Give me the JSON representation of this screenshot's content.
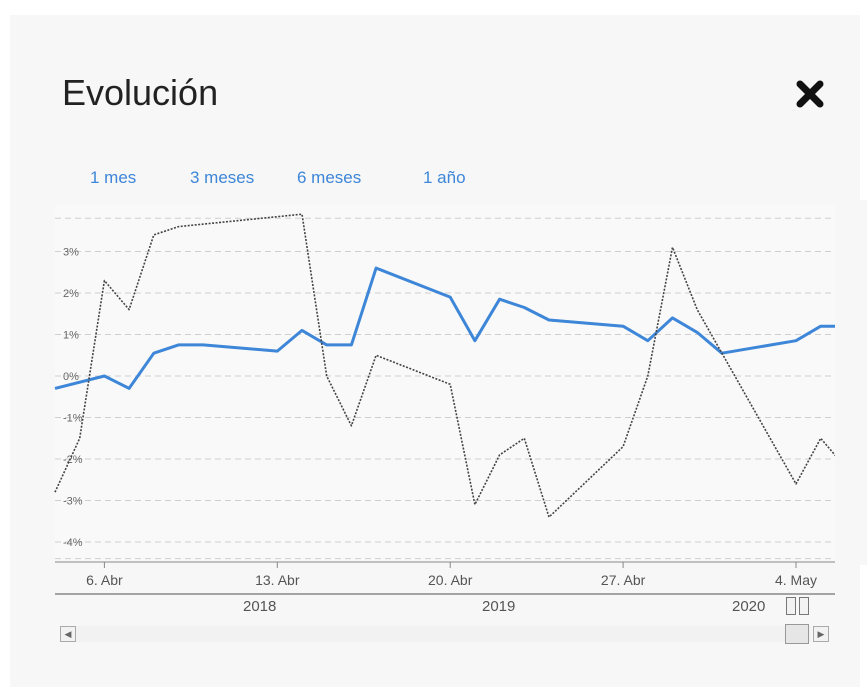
{
  "title": "Evolución",
  "close_icon": "close-x-icon",
  "ranges": [
    "1 mes",
    "3 meses",
    "6 meses",
    "1 año"
  ],
  "colors": {
    "accent": "#3d86d8",
    "series_a": "#3d86d8",
    "series_b": "#444444",
    "grid": "#cfcfcf",
    "text": "#555555"
  },
  "navigator": {
    "years": [
      "2018",
      "2019",
      "2020"
    ]
  },
  "chart_data": {
    "type": "line",
    "x_tick_labels": [
      "6. Abr",
      "13. Abr",
      "20. Abr",
      "27. Abr",
      "4. May"
    ],
    "y_tick_labels": [
      "3%",
      "2%",
      "1%",
      "0%",
      "-1%",
      "-2%",
      "-3%",
      "-4%"
    ],
    "ylim": [
      -4.5,
      4
    ],
    "grid": true,
    "series": [
      {
        "style": "solid",
        "color": "#3d86d8",
        "x": [
          "2020-04-04",
          "2020-04-06",
          "2020-04-07",
          "2020-04-08",
          "2020-04-09",
          "2020-04-10",
          "2020-04-13",
          "2020-04-14",
          "2020-04-15",
          "2020-04-16",
          "2020-04-17",
          "2020-04-20",
          "2020-04-21",
          "2020-04-22",
          "2020-04-23",
          "2020-04-24",
          "2020-04-27",
          "2020-04-28",
          "2020-04-29",
          "2020-04-30",
          "2020-05-01",
          "2020-05-04",
          "2020-05-05",
          "2020-05-06"
        ],
        "values": [
          -0.3,
          0.0,
          -0.3,
          0.55,
          0.75,
          0.75,
          0.6,
          1.1,
          0.75,
          0.75,
          2.6,
          1.9,
          0.85,
          1.85,
          1.65,
          1.35,
          1.2,
          0.85,
          1.4,
          1.05,
          0.55,
          0.85,
          1.2,
          1.2
        ]
      },
      {
        "style": "dotted",
        "color": "#444444",
        "x": [
          "2020-04-04",
          "2020-04-05",
          "2020-04-06",
          "2020-04-07",
          "2020-04-08",
          "2020-04-09",
          "2020-04-14",
          "2020-04-15",
          "2020-04-16",
          "2020-04-17",
          "2020-04-20",
          "2020-04-21",
          "2020-04-22",
          "2020-04-23",
          "2020-04-24",
          "2020-04-27",
          "2020-04-28",
          "2020-04-29",
          "2020-04-30",
          "2020-05-04",
          "2020-05-05",
          "2020-05-06"
        ],
        "values": [
          -2.8,
          -1.5,
          2.3,
          1.6,
          3.4,
          3.6,
          3.9,
          0.0,
          -1.2,
          0.5,
          -0.2,
          -3.1,
          -1.9,
          -1.5,
          -3.4,
          -1.7,
          0.0,
          3.1,
          1.6,
          -2.6,
          -1.5,
          -2.2
        ]
      }
    ]
  }
}
